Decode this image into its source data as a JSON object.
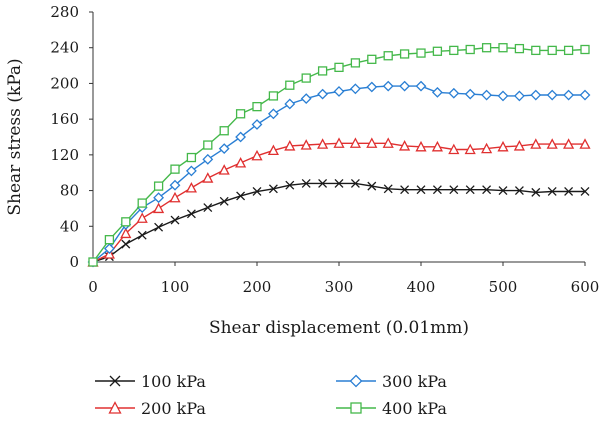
{
  "chart_data": {
    "type": "line",
    "title": "",
    "xlabel": "Shear displacement (0.01mm)",
    "ylabel": "Shear stress (kPa)",
    "xlim": [
      0,
      600
    ],
    "ylim": [
      0,
      280
    ],
    "xticks": [
      0,
      100,
      200,
      300,
      400,
      500,
      600
    ],
    "yticks": [
      0,
      40,
      80,
      120,
      160,
      200,
      240,
      280
    ],
    "grid": false,
    "legend": "bottom",
    "series": [
      {
        "name": "100 kPa",
        "color": "#1a1a1a",
        "marker": "x",
        "x": [
          0,
          20,
          40,
          60,
          80,
          100,
          120,
          140,
          160,
          180,
          200,
          220,
          240,
          260,
          280,
          300,
          320,
          340,
          360,
          380,
          400,
          420,
          440,
          460,
          480,
          500,
          520,
          540,
          560,
          580,
          600
        ],
        "y": [
          0,
          6,
          20,
          30,
          39,
          47,
          54,
          61,
          68,
          74,
          79,
          82,
          86,
          88,
          88,
          88,
          88,
          85,
          82,
          81,
          81,
          81,
          81,
          81,
          81,
          80,
          80,
          78,
          79,
          79,
          79
        ]
      },
      {
        "name": "200 kPa",
        "color": "#e03030",
        "marker": "triangle",
        "x": [
          0,
          20,
          40,
          60,
          80,
          100,
          120,
          140,
          160,
          180,
          200,
          220,
          240,
          260,
          280,
          300,
          320,
          340,
          360,
          380,
          400,
          420,
          440,
          460,
          480,
          500,
          520,
          540,
          560,
          580,
          600
        ],
        "y": [
          0,
          9,
          32,
          49,
          60,
          72,
          83,
          94,
          103,
          111,
          119,
          125,
          130,
          131,
          132,
          133,
          133,
          133,
          133,
          130,
          129,
          129,
          126,
          126,
          127,
          129,
          130,
          132,
          132,
          132,
          132
        ]
      },
      {
        "name": "300 kPa",
        "color": "#2a7fd4",
        "marker": "diamond",
        "x": [
          0,
          20,
          40,
          60,
          80,
          100,
          120,
          140,
          160,
          180,
          200,
          220,
          240,
          260,
          280,
          300,
          320,
          340,
          360,
          380,
          400,
          420,
          440,
          460,
          480,
          500,
          520,
          540,
          560,
          580,
          600
        ],
        "y": [
          0,
          15,
          42,
          61,
          72,
          86,
          102,
          115,
          127,
          140,
          154,
          166,
          177,
          183,
          188,
          191,
          194,
          196,
          197,
          197,
          197,
          190,
          189,
          188,
          187,
          186,
          186,
          187,
          187,
          187,
          187
        ]
      },
      {
        "name": "400 kPa",
        "color": "#44b84a",
        "marker": "square",
        "x": [
          0,
          20,
          40,
          60,
          80,
          100,
          120,
          140,
          160,
          180,
          200,
          220,
          240,
          260,
          280,
          300,
          320,
          340,
          360,
          380,
          400,
          420,
          440,
          460,
          480,
          500,
          520,
          540,
          560,
          580,
          600
        ],
        "y": [
          0,
          25,
          45,
          66,
          85,
          104,
          117,
          131,
          147,
          166,
          174,
          186,
          198,
          206,
          214,
          218,
          223,
          227,
          231,
          233,
          234,
          236,
          237,
          238,
          240,
          240,
          239,
          237,
          237,
          237,
          238
        ]
      }
    ]
  }
}
